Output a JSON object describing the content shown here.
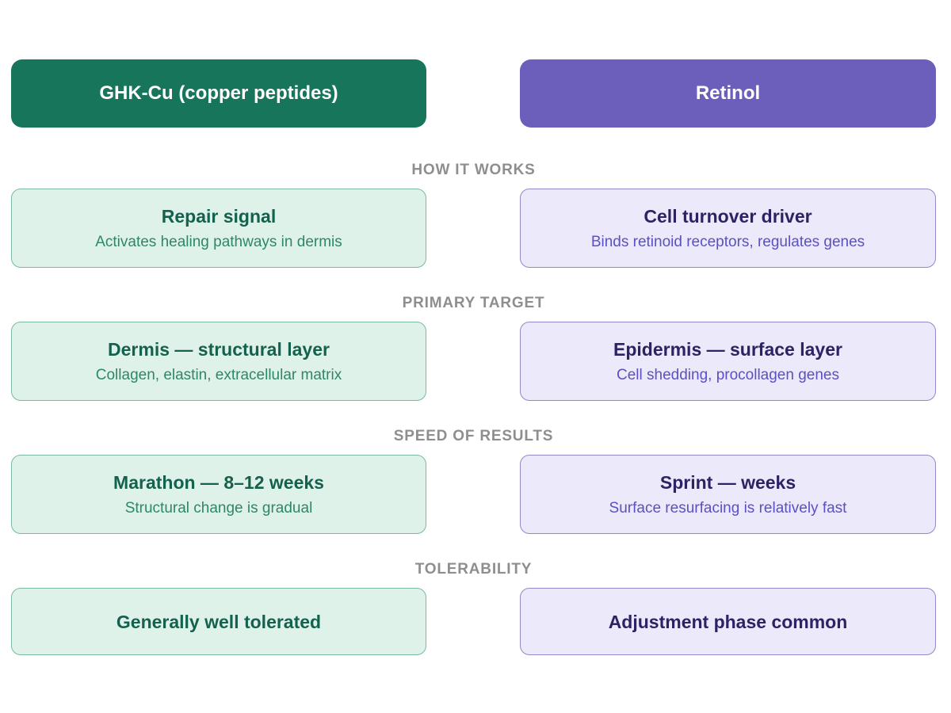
{
  "columns": [
    {
      "title": "GHK-Cu (copper peptides)",
      "accent": "#16755A"
    },
    {
      "title": "Retinol",
      "accent": "#6C5FBC"
    }
  ],
  "colors": {
    "left_header_bg": "#16755A",
    "right_header_bg": "#6C5FBC",
    "left_card_bg": "#DFF2EA",
    "left_card_border": "#7ABA9E",
    "left_title_text": "#14614D",
    "left_subtitle_text": "#2E8767",
    "right_card_bg": "#EBE9FA",
    "right_card_border": "#9289C9",
    "right_title_text": "#2B2363",
    "right_subtitle_text": "#5B50C4",
    "section_label_text": "#8E8E8E",
    "header_text": "#FFFFFF",
    "background": "#FFFFFF"
  },
  "sections": [
    {
      "label": "HOW IT WORKS",
      "left": {
        "title": "Repair signal",
        "subtitle": "Activates healing pathways in dermis"
      },
      "right": {
        "title": "Cell turnover driver",
        "subtitle": "Binds retinoid receptors, regulates genes"
      }
    },
    {
      "label": "PRIMARY TARGET",
      "left": {
        "title": "Dermis — structural layer",
        "subtitle": "Collagen, elastin, extracellular matrix"
      },
      "right": {
        "title": "Epidermis — surface layer",
        "subtitle": "Cell shedding, procollagen genes"
      }
    },
    {
      "label": "SPEED OF RESULTS",
      "left": {
        "title": "Marathon — 8–12 weeks",
        "subtitle": "Structural change is gradual"
      },
      "right": {
        "title": "Sprint — weeks",
        "subtitle": "Surface resurfacing is relatively fast"
      }
    },
    {
      "label": "TOLERABILITY",
      "left": {
        "title": "Generally well tolerated"
      },
      "right": {
        "title": "Adjustment phase common"
      }
    }
  ]
}
